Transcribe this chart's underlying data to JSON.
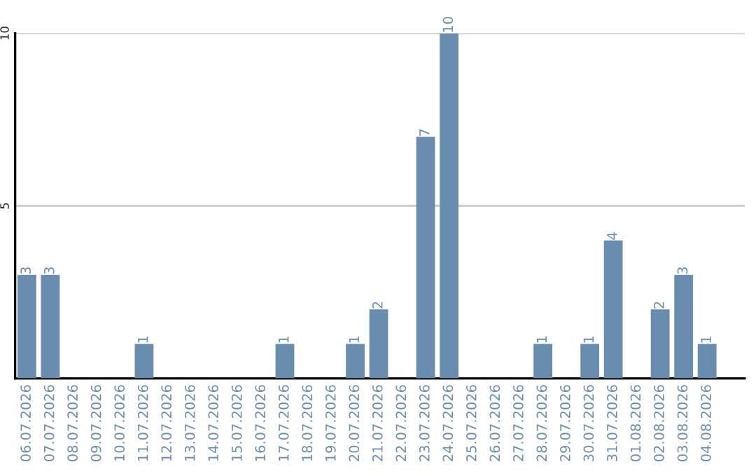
{
  "chart_data": {
    "type": "bar",
    "categories": [
      "06.07.2026",
      "07.07.2026",
      "08.07.2026",
      "09.07.2026",
      "10.07.2026",
      "11.07.2026",
      "12.07.2026",
      "13.07.2026",
      "14.07.2026",
      "15.07.2026",
      "16.07.2026",
      "17.07.2026",
      "18.07.2026",
      "19.07.2026",
      "20.07.2026",
      "21.07.2026",
      "22.07.2026",
      "23.07.2026",
      "24.07.2026",
      "25.07.2026",
      "26.07.2026",
      "27.07.2026",
      "28.07.2026",
      "29.07.2026",
      "30.07.2026",
      "31.07.2026",
      "01.08.2026",
      "02.08.2026",
      "03.08.2026",
      "04.08.2026"
    ],
    "values": [
      3,
      3,
      0,
      0,
      0,
      1,
      0,
      0,
      0,
      0,
      0,
      1,
      0,
      0,
      1,
      2,
      0,
      7,
      10,
      0,
      0,
      0,
      1,
      0,
      1,
      4,
      0,
      2,
      3,
      1
    ],
    "value_labels": [
      "3",
      "3",
      null,
      null,
      null,
      "1",
      null,
      null,
      null,
      null,
      null,
      "1",
      null,
      null,
      "1",
      "2",
      null,
      "7",
      "10",
      null,
      null,
      null,
      "1",
      null,
      "1",
      "4",
      null,
      "2",
      "3",
      "1"
    ],
    "color": "#6a8caf",
    "ylim": [
      0,
      10
    ],
    "yticks": [
      5,
      10
    ],
    "grid": "y"
  }
}
